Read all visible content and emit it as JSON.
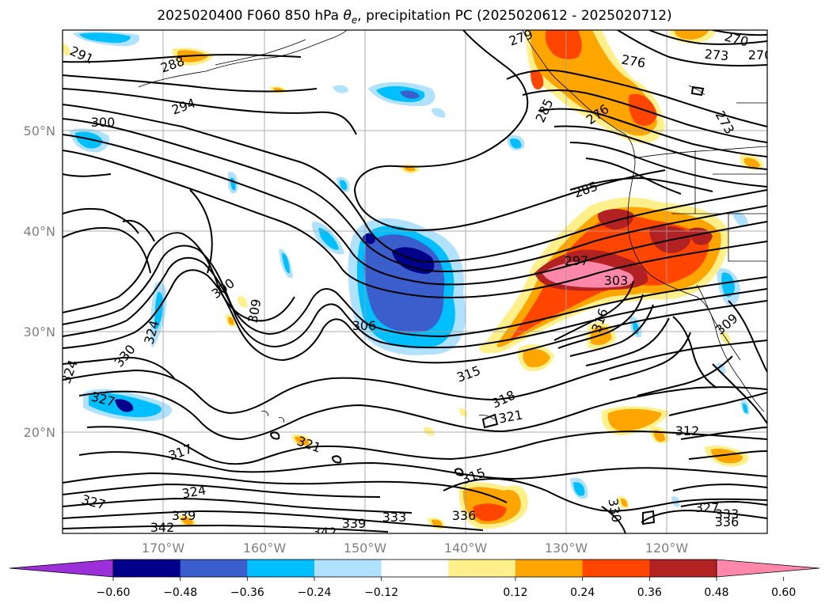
{
  "title": {
    "prefix": "2025020400 F060 850 hPa ",
    "theta_symbol": "θ",
    "theta_sub": "e",
    "suffix": ", precipitation PC (2025020612 - 2025020712)"
  },
  "axes": {
    "lat_labels": [
      "50°N",
      "40°N",
      "30°N",
      "20°N"
    ],
    "lon_labels": [
      "170°W",
      "160°W",
      "150°W",
      "140°W",
      "130°W",
      "120°W"
    ]
  },
  "contour_labels": [
    "291",
    "288",
    "294",
    "300",
    "270",
    "276",
    "273",
    "270",
    "279",
    "285",
    "276",
    "273",
    "285",
    "297",
    "303",
    "300",
    "309",
    "306",
    "324",
    "327",
    "330",
    "324",
    "315",
    "316",
    "318",
    "321",
    "312",
    "317",
    "321",
    "315",
    "327",
    "324",
    "339",
    "342",
    "342",
    "339",
    "333",
    "336",
    "330",
    "327",
    "333",
    "336",
    "309"
  ],
  "colorbar": {
    "tick_labels": [
      "−0.60",
      "−0.48",
      "−0.36",
      "−0.24",
      "−0.12",
      "0.12",
      "0.24",
      "0.36",
      "0.48",
      "0.60"
    ],
    "colors": [
      "#9b30d9",
      "#00008b",
      "#3a5fcd",
      "#00bfff",
      "#b0e2ff",
      "#ffffff",
      "#fff08c",
      "#ffa500",
      "#ff4500",
      "#b22222",
      "#ff88aa"
    ]
  },
  "fill_colors": {
    "neg_light": "#b0e2ff",
    "neg_mid": "#00bfff",
    "neg_strong": "#3a5fcd",
    "neg_dark": "#00008b",
    "pos_light": "#fff08c",
    "pos_mid": "#ffa500",
    "pos_strong": "#ff4500",
    "pos_dark": "#b22222",
    "pos_max": "#ff88aa"
  }
}
